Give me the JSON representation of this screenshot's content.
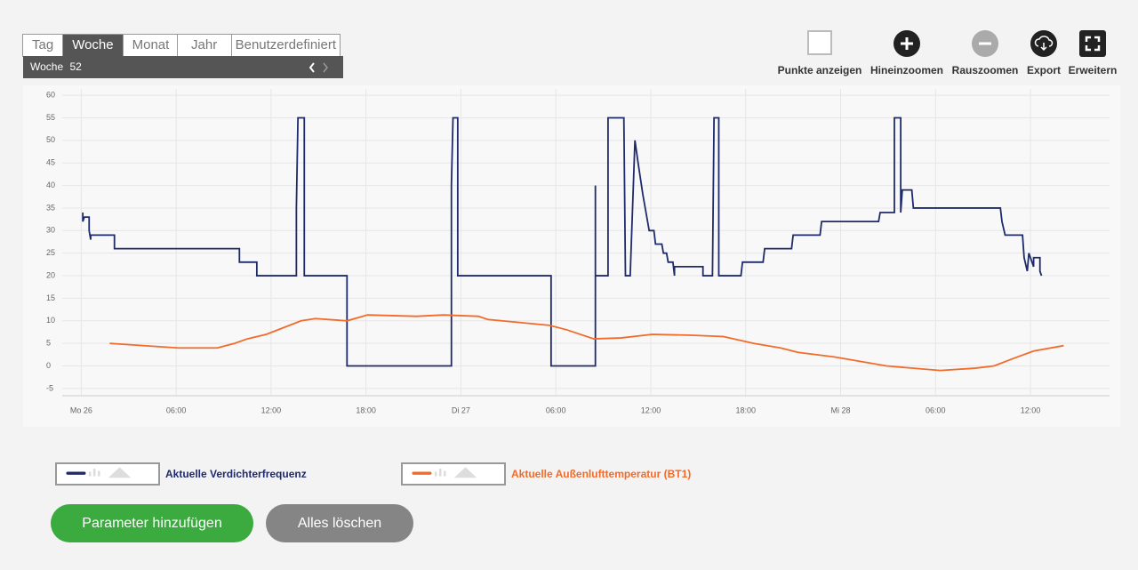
{
  "tabs": [
    "Tag",
    "Woche",
    "Monat",
    "Jahr",
    "Benutzerdefiniert"
  ],
  "period": {
    "label": "Woche",
    "value": "52"
  },
  "toolbar": [
    "Punkte anzeigen",
    "Hineinzoomen",
    "Rauszoomen",
    "Export",
    "Erweitern"
  ],
  "buttons": [
    "Parameter hinzufügen",
    "Alles löschen"
  ],
  "chart_data": {
    "type": "line",
    "grid": true,
    "xlim": [
      -1.2,
      65
    ],
    "xticks": [
      {
        "value": 0,
        "label": "Mo 26"
      },
      {
        "value": 6,
        "label": "06:00"
      },
      {
        "value": 12,
        "label": "12:00"
      },
      {
        "value": 18,
        "label": "18:00"
      },
      {
        "value": 24,
        "label": "Di 27"
      },
      {
        "value": 30,
        "label": "06:00"
      },
      {
        "value": 36,
        "label": "12:00"
      },
      {
        "value": 42,
        "label": "18:00"
      },
      {
        "value": 48,
        "label": "Mi 28"
      },
      {
        "value": 54,
        "label": "06:00"
      },
      {
        "value": 60,
        "label": "12:00"
      }
    ],
    "ylim": [
      -6.6,
      61.4
    ],
    "yticks": [
      -5,
      0,
      5,
      10,
      15,
      20,
      25,
      30,
      35,
      40,
      45,
      50,
      55,
      60
    ],
    "series": [
      {
        "name": "Aktuelle Verdichterfrequenz",
        "color": "#1f2a6b",
        "x": [
          0.1,
          0.1,
          0.2,
          0.5,
          0.5,
          0.6,
          0.6,
          2.1,
          2.1,
          10.0,
          10.0,
          10.1,
          11.1,
          11.1,
          13.6,
          13.6,
          13.7,
          14.1,
          14.1,
          16.8,
          16.8,
          23.4,
          23.4,
          23.5,
          23.8,
          23.8,
          29.7,
          29.7,
          32.5,
          32.5,
          32.5,
          33.3,
          33.3,
          34.3,
          34.4,
          34.7,
          35.0,
          35.2,
          35.5,
          35.7,
          35.9,
          36.2,
          36.3,
          36.7,
          36.8,
          37.0,
          37.1,
          37.4,
          37.5,
          37.5,
          39.3,
          39.3,
          39.9,
          40.0,
          40.3,
          40.3,
          41.7,
          41.8,
          43.1,
          43.2,
          44.9,
          45.0,
          46.7,
          46.8,
          50.4,
          50.5,
          51.4,
          51.4,
          51.8,
          51.8,
          51.9,
          52.5,
          52.6,
          58.1,
          58.2,
          58.4,
          59.5,
          59.6,
          59.8,
          59.9,
          60.1,
          60.2,
          60.2,
          60.6,
          60.6,
          60.7
        ],
        "values": [
          34,
          32,
          33,
          33,
          30,
          28,
          29,
          29,
          26,
          26,
          23,
          23,
          23,
          20,
          20,
          35,
          55,
          55,
          20,
          20,
          0,
          0,
          40,
          55,
          55,
          20,
          20,
          0,
          0,
          40,
          20,
          20,
          55,
          55,
          20,
          20,
          50,
          45,
          38,
          34,
          30,
          30,
          27,
          27,
          25,
          25,
          23,
          23,
          20,
          22,
          22,
          20,
          20,
          55,
          55,
          20,
          20,
          23,
          23,
          26,
          26,
          29,
          29,
          32,
          32,
          34,
          34,
          55,
          55,
          34,
          39,
          39,
          35,
          35,
          32,
          29,
          29,
          24,
          21,
          25,
          23,
          22,
          24,
          24,
          21,
          20
        ]
      },
      {
        "name": "Aktuelle Außenlufttemperatur (BT1)",
        "color": "#f26b2a",
        "x": [
          1.8,
          6.1,
          8.6,
          9.7,
          10.5,
          11.7,
          12.8,
          13.9,
          14.8,
          16.8,
          18.1,
          21.2,
          22.9,
          25.1,
          25.7,
          29.6,
          30.7,
          32.4,
          34.1,
          36.1,
          38.6,
          40.6,
          42.5,
          44.2,
          45.3,
          47.6,
          50.9,
          54.3,
          56.5,
          57.7,
          58.8,
          60.2,
          62.1
        ],
        "values": [
          5,
          4,
          4,
          5,
          6,
          7,
          8.5,
          10,
          10.5,
          10,
          11.3,
          11,
          11.3,
          11,
          10.3,
          9,
          8,
          6,
          6.2,
          7,
          6.8,
          6.5,
          5,
          4,
          3,
          2,
          0,
          -1,
          -0.5,
          0,
          1.5,
          3.3,
          4.5
        ]
      }
    ]
  }
}
